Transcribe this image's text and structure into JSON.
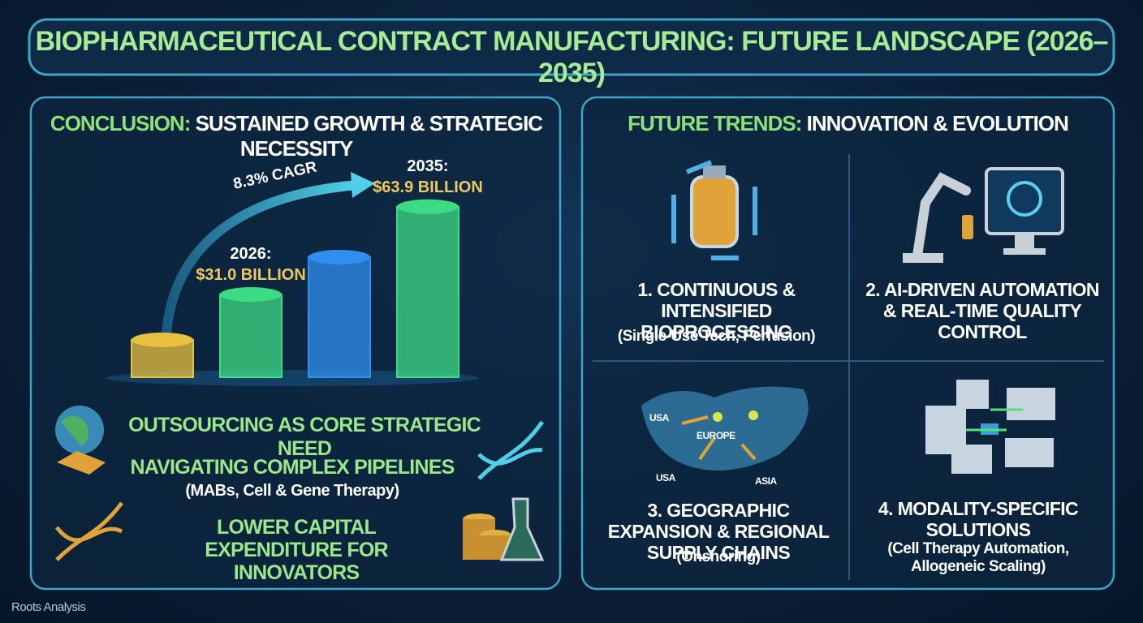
{
  "header": {
    "title": "BIOPHARMACEUTICAL CONTRACT MANUFACTURING: FUTURE LANDSCAPE (2026–2035)"
  },
  "conclusion": {
    "heading_highlight": "CONCLUSION:",
    "heading": "SUSTAINED GROWTH & STRATEGIC NECESSITY",
    "chart_data": {
      "type": "bar",
      "annotation": "8.3% CAGR",
      "categories": [
        null,
        "2026:",
        null,
        "2035:"
      ],
      "values": [
        14,
        31.0,
        45,
        63.9
      ],
      "value_labels": [
        null,
        "$31.0 BILLION",
        null,
        "$63.9 BILLION"
      ],
      "colors": [
        "#e8c040",
        "#3ddc84",
        "#2f8ff0",
        "#3ddc84"
      ]
    },
    "points": [
      {
        "text": "OUTSOURCING AS CORE STRATEGIC NEED"
      },
      {
        "text": "NAVIGATING COMPLEX PIPELINES",
        "detail": "(MABs, Cell & Gene Therapy)"
      },
      {
        "text": "LOWER CAPITAL EXPENDITURE FOR INNOVATORS"
      }
    ]
  },
  "trends": {
    "heading_highlight": "FUTURE TRENDS:",
    "heading": "INNOVATION & EVOLUTION",
    "items": [
      {
        "title": "1. CONTINUOUS & INTENSIFIED BIOPROCESSING",
        "detail": "(Single-Use Tech, Perfusion)"
      },
      {
        "title": "2. AI-DRIVEN AUTOMATION & REAL-TIME QUALITY CONTROL"
      },
      {
        "title": "3. GEOGRAPHIC EXPANSION & REGIONAL SUPPLY CHAINS",
        "detail": "(Onshoring)"
      },
      {
        "title": "4. MODALITY-SPECIFIC SOLUTIONS",
        "detail": "(Cell Therapy Automation, Allogeneic Scaling)"
      }
    ],
    "map_labels": [
      "USA",
      "EUROPE",
      "USA",
      "ASIA"
    ]
  },
  "footer": {
    "brand": "Roots Analysis"
  }
}
